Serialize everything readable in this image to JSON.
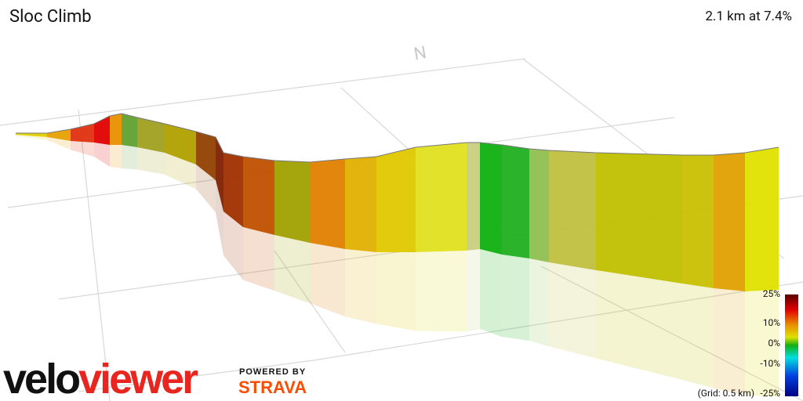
{
  "header": {
    "title": "Sloc Climb",
    "stats": "2.1 km at 7.4%"
  },
  "compass": "N",
  "legend": {
    "labels": [
      "25%",
      "10%",
      "0%",
      "-10%",
      "-25%"
    ],
    "grid_note": "(Grid: 0.5 km)"
  },
  "branding": {
    "velo": "velo",
    "viewer": "viewer",
    "powered_by": "POWERED BY",
    "strava": "STRAVA"
  }
}
